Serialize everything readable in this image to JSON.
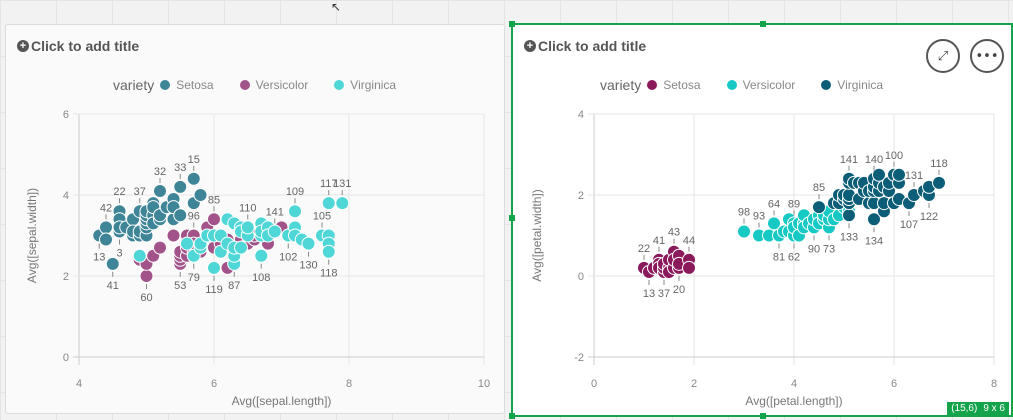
{
  "charts": [
    {
      "title_placeholder": "Click to add title",
      "legend_title": "variety",
      "xlabel": "Avg([sepal.length])",
      "ylabel": "Avg([sepal.width])",
      "xlim": [
        4,
        10
      ],
      "ylim": [
        0,
        6
      ],
      "xticks": [
        "4",
        "6",
        "8",
        "10"
      ],
      "yticks": [
        "0",
        "2",
        "4",
        "6"
      ],
      "grid": true,
      "series": [
        {
          "name": "Setosa",
          "color": "#3f8598",
          "points": [
            [
              4.3,
              3.0,
              "13"
            ],
            [
              4.4,
              3.2,
              "42"
            ],
            [
              4.4,
              2.9
            ],
            [
              4.5,
              2.3,
              "41"
            ],
            [
              4.6,
              3.1,
              "3"
            ],
            [
              4.6,
              3.6,
              "22"
            ],
            [
              4.6,
              3.4
            ],
            [
              4.6,
              3.2
            ],
            [
              4.7,
              3.2
            ],
            [
              4.8,
              3.0
            ],
            [
              4.8,
              3.4
            ],
            [
              4.8,
              3.1
            ],
            [
              4.9,
              3.6,
              "37"
            ],
            [
              4.9,
              3.0
            ],
            [
              4.9,
              3.1
            ],
            [
              5.0,
              3.0
            ],
            [
              5.0,
              3.2
            ],
            [
              5.0,
              3.3
            ],
            [
              5.0,
              3.4
            ],
            [
              5.0,
              3.5
            ],
            [
              5.0,
              3.6
            ],
            [
              5.1,
              3.8
            ],
            [
              5.1,
              3.5
            ],
            [
              5.1,
              3.3
            ],
            [
              5.1,
              3.7
            ],
            [
              5.2,
              3.4
            ],
            [
              5.2,
              3.5
            ],
            [
              5.2,
              4.1,
              "32"
            ],
            [
              5.3,
              3.7
            ],
            [
              5.4,
              3.9
            ],
            [
              5.4,
              3.4
            ],
            [
              5.4,
              3.7
            ],
            [
              5.5,
              4.2,
              "33"
            ],
            [
              5.5,
              3.5
            ],
            [
              5.7,
              4.4,
              "15"
            ],
            [
              5.7,
              3.8
            ],
            [
              5.8,
              4.0
            ]
          ]
        },
        {
          "name": "Versicolor",
          "color": "#a2548a",
          "points": [
            [
              4.9,
              2.4
            ],
            [
              5.0,
              2.0,
              "60"
            ],
            [
              5.0,
              2.3
            ],
            [
              5.1,
              2.5
            ],
            [
              5.2,
              2.7
            ],
            [
              5.4,
              3.0
            ],
            [
              5.5,
              2.3,
              "53"
            ],
            [
              5.5,
              2.4
            ],
            [
              5.5,
              2.5
            ],
            [
              5.5,
              2.6
            ],
            [
              5.6,
              2.5
            ],
            [
              5.6,
              2.7
            ],
            [
              5.6,
              2.9
            ],
            [
              5.6,
              3.0
            ],
            [
              5.7,
              3.0,
              "96"
            ],
            [
              5.7,
              2.6
            ],
            [
              5.7,
              2.8
            ],
            [
              5.8,
              2.6
            ],
            [
              5.9,
              3.2
            ],
            [
              6.0,
              3.4,
              "85"
            ],
            [
              6.0,
              2.9
            ],
            [
              6.0,
              2.7
            ],
            [
              6.1,
              2.8
            ],
            [
              6.1,
              3.0
            ],
            [
              6.2,
              2.2
            ],
            [
              6.2,
              2.9
            ],
            [
              6.3,
              2.3
            ],
            [
              6.4,
              2.9
            ],
            [
              6.5,
              2.8
            ],
            [
              6.6,
              2.9
            ],
            [
              6.6,
              3.0
            ],
            [
              6.8,
              2.8
            ],
            [
              7.0,
              3.2
            ]
          ]
        },
        {
          "name": "Virginica",
          "color": "#4fd6d6",
          "points": [
            [
              4.9,
              2.5
            ],
            [
              5.6,
              2.8
            ],
            [
              5.7,
              2.5,
              "79"
            ],
            [
              5.8,
              2.7
            ],
            [
              5.8,
              2.8
            ],
            [
              5.9,
              3.0
            ],
            [
              6.0,
              2.2,
              "119"
            ],
            [
              6.0,
              3.0
            ],
            [
              6.1,
              2.6
            ],
            [
              6.1,
              3.0
            ],
            [
              6.2,
              2.8
            ],
            [
              6.2,
              3.4
            ],
            [
              6.3,
              2.3,
              "87"
            ],
            [
              6.3,
              2.5
            ],
            [
              6.3,
              2.7
            ],
            [
              6.3,
              3.3
            ],
            [
              6.4,
              2.7
            ],
            [
              6.4,
              3.2
            ],
            [
              6.4,
              3.1
            ],
            [
              6.5,
              3.0
            ],
            [
              6.5,
              3.2,
              "110"
            ],
            [
              6.7,
              2.5,
              "108"
            ],
            [
              6.7,
              3.0
            ],
            [
              6.7,
              3.3
            ],
            [
              6.7,
              3.1
            ],
            [
              6.8,
              3.2
            ],
            [
              6.8,
              3.0
            ],
            [
              6.9,
              3.1,
              "141"
            ],
            [
              7.1,
              3.0,
              "102"
            ],
            [
              7.2,
              3.6,
              "109"
            ],
            [
              7.2,
              3.2
            ],
            [
              7.2,
              3.0
            ],
            [
              7.3,
              2.9
            ],
            [
              7.4,
              2.8,
              "130"
            ],
            [
              7.6,
              3.0,
              "105"
            ],
            [
              7.7,
              3.8,
              "117"
            ],
            [
              7.7,
              3.0
            ],
            [
              7.7,
              2.8
            ],
            [
              7.7,
              2.6,
              "118"
            ],
            [
              7.9,
              3.8,
              "131"
            ]
          ]
        }
      ]
    },
    {
      "title_placeholder": "Click to add title",
      "legend_title": "variety",
      "xlabel": "Avg([petal.length])",
      "ylabel": "Avg([petal.width])",
      "xlim": [
        0,
        8
      ],
      "ylim": [
        -2,
        4
      ],
      "xticks": [
        "0",
        "2",
        "4",
        "6",
        "8"
      ],
      "yticks": [
        "-2",
        "0",
        "2",
        "4"
      ],
      "grid": true,
      "series": [
        {
          "name": "Setosa",
          "color": "#8b1a5c",
          "points": [
            [
              1.0,
              0.2,
              "22"
            ],
            [
              1.1,
              0.1,
              "13"
            ],
            [
              1.2,
              0.2
            ],
            [
              1.3,
              0.4,
              "41"
            ],
            [
              1.3,
              0.3
            ],
            [
              1.3,
              0.2
            ],
            [
              1.4,
              0.1,
              "37"
            ],
            [
              1.4,
              0.2
            ],
            [
              1.4,
              0.3
            ],
            [
              1.5,
              0.2
            ],
            [
              1.5,
              0.4
            ],
            [
              1.5,
              0.1
            ],
            [
              1.6,
              0.6,
              "43"
            ],
            [
              1.6,
              0.2
            ],
            [
              1.6,
              0.4
            ],
            [
              1.7,
              0.2,
              "20"
            ],
            [
              1.7,
              0.5
            ],
            [
              1.7,
              0.3
            ],
            [
              1.9,
              0.4,
              "44"
            ],
            [
              1.9,
              0.2
            ]
          ]
        },
        {
          "name": "Versicolor",
          "color": "#17c9c4",
          "points": [
            [
              3.0,
              1.1,
              "98"
            ],
            [
              3.3,
              1.0,
              "93"
            ],
            [
              3.5,
              1.0
            ],
            [
              3.6,
              1.3,
              "64"
            ],
            [
              3.7,
              1.0,
              "81"
            ],
            [
              3.8,
              1.1
            ],
            [
              3.9,
              1.1
            ],
            [
              3.9,
              1.4
            ],
            [
              4.0,
              1.0,
              "62"
            ],
            [
              4.0,
              1.3,
              "89"
            ],
            [
              4.0,
              1.2
            ],
            [
              4.1,
              1.0
            ],
            [
              4.1,
              1.3
            ],
            [
              4.2,
              1.3
            ],
            [
              4.2,
              1.5
            ],
            [
              4.2,
              1.2
            ],
            [
              4.3,
              1.3
            ],
            [
              4.4,
              1.2,
              "90"
            ],
            [
              4.4,
              1.4
            ],
            [
              4.5,
              1.5
            ],
            [
              4.5,
              1.3
            ],
            [
              4.6,
              1.4
            ],
            [
              4.6,
              1.5
            ],
            [
              4.7,
              1.2,
              "73"
            ],
            [
              4.7,
              1.4
            ],
            [
              4.7,
              1.6
            ],
            [
              4.8,
              1.4
            ],
            [
              4.9,
              1.5
            ],
            [
              5.0,
              1.7
            ],
            [
              5.1,
              1.6
            ]
          ]
        },
        {
          "name": "Virginica",
          "color": "#0b5d78",
          "points": [
            [
              4.5,
              1.7,
              "85"
            ],
            [
              4.8,
              1.8
            ],
            [
              4.9,
              1.8
            ],
            [
              4.9,
              2.0
            ],
            [
              5.0,
              1.9
            ],
            [
              5.0,
              2.0
            ],
            [
              5.1,
              1.5,
              "133"
            ],
            [
              5.1,
              1.8
            ],
            [
              5.1,
              1.9
            ],
            [
              5.1,
              2.0
            ],
            [
              5.1,
              2.3
            ],
            [
              5.1,
              2.4,
              "141"
            ],
            [
              5.2,
              2.3
            ],
            [
              5.3,
              1.9
            ],
            [
              5.3,
              2.3
            ],
            [
              5.4,
              2.1
            ],
            [
              5.4,
              2.3
            ],
            [
              5.5,
              1.8
            ],
            [
              5.5,
              2.1
            ],
            [
              5.6,
              1.4,
              "134"
            ],
            [
              5.6,
              1.8
            ],
            [
              5.6,
              2.1
            ],
            [
              5.6,
              2.2
            ],
            [
              5.6,
              2.4,
              "140"
            ],
            [
              5.7,
              2.1
            ],
            [
              5.7,
              2.3
            ],
            [
              5.7,
              2.5
            ],
            [
              5.8,
              1.6
            ],
            [
              5.8,
              1.8
            ],
            [
              5.8,
              2.2
            ],
            [
              5.9,
              2.1
            ],
            [
              5.9,
              2.3
            ],
            [
              6.0,
              1.8
            ],
            [
              6.0,
              2.5,
              "100"
            ],
            [
              6.1,
              1.9
            ],
            [
              6.1,
              2.3
            ],
            [
              6.1,
              2.5
            ],
            [
              6.3,
              1.8,
              "107"
            ],
            [
              6.4,
              2.0,
              "131"
            ],
            [
              6.6,
              2.1
            ],
            [
              6.7,
              2.0,
              "122"
            ],
            [
              6.7,
              2.2
            ],
            [
              6.9,
              2.3,
              "118"
            ]
          ]
        }
      ]
    }
  ],
  "status": {
    "position": "(15,6)",
    "size": "9 x 6"
  }
}
